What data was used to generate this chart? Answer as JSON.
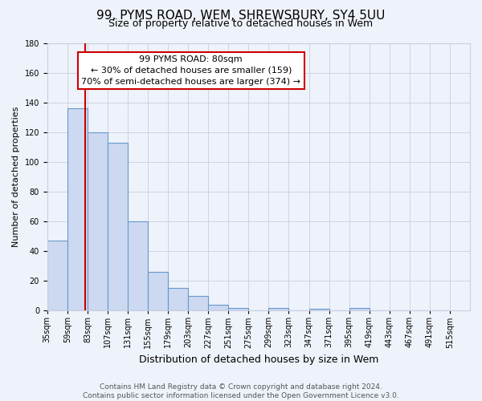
{
  "title": "99, PYMS ROAD, WEM, SHREWSBURY, SY4 5UU",
  "subtitle": "Size of property relative to detached houses in Wem",
  "xlabel": "Distribution of detached houses by size in Wem",
  "ylabel": "Number of detached properties",
  "bar_values": [
    47,
    136,
    120,
    113,
    60,
    26,
    15,
    10,
    4,
    2,
    0,
    2,
    0,
    1,
    0,
    2,
    0,
    0,
    0,
    0
  ],
  "bin_labels": [
    "35sqm",
    "59sqm",
    "83sqm",
    "107sqm",
    "131sqm",
    "155sqm",
    "179sqm",
    "203sqm",
    "227sqm",
    "251sqm",
    "275sqm",
    "299sqm",
    "323sqm",
    "347sqm",
    "371sqm",
    "395sqm",
    "419sqm",
    "443sqm",
    "467sqm",
    "491sqm",
    "515sqm"
  ],
  "bar_color": "#ccd9f0",
  "bar_edge_color": "#6699cc",
  "property_size": 80,
  "annotation_line1": "99 PYMS ROAD: 80sqm",
  "annotation_line2": "← 30% of detached houses are smaller (159)",
  "annotation_line3": "70% of semi-detached houses are larger (374) →",
  "annotation_box_color": "#ffffff",
  "annotation_box_edge": "#cc0000",
  "vertical_line_color": "#cc0000",
  "ylim": [
    0,
    180
  ],
  "yticks": [
    0,
    20,
    40,
    60,
    80,
    100,
    120,
    140,
    160,
    180
  ],
  "bin_edges": [
    35,
    59,
    83,
    107,
    131,
    155,
    179,
    203,
    227,
    251,
    275,
    299,
    323,
    347,
    371,
    395,
    419,
    443,
    467,
    491,
    515
  ],
  "footer_line1": "Contains HM Land Registry data © Crown copyright and database right 2024.",
  "footer_line2": "Contains public sector information licensed under the Open Government Licence v3.0.",
  "background_color": "#eef2fa",
  "grid_color": "#c8cfe0",
  "title_fontsize": 11,
  "subtitle_fontsize": 9,
  "xlabel_fontsize": 9,
  "ylabel_fontsize": 8,
  "tick_fontsize": 7,
  "footer_fontsize": 6.5,
  "annotation_fontsize": 8
}
